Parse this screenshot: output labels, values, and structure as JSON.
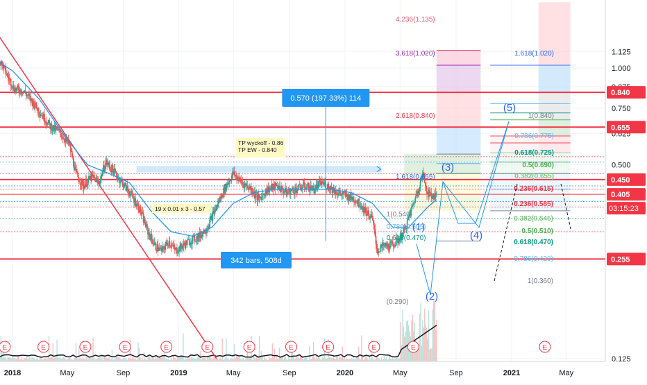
{
  "chart_data": {
    "type": "candlestick",
    "y_axis": {
      "scale": "log",
      "ticks": [
        0.125,
        0.25,
        0.375,
        0.5,
        0.625,
        0.75,
        0.875,
        1.0,
        1.125
      ],
      "tick_labels": [
        "0.125",
        "0.250",
        "0.375",
        "0.500",
        "0.625",
        "0.750",
        "0.875",
        "1.000",
        "1.125"
      ]
    },
    "x_axis": {
      "ticks": [
        {
          "date": "2018-01-01",
          "label": "2018",
          "bold": true
        },
        {
          "date": "2018-05-01",
          "label": "May",
          "bold": false
        },
        {
          "date": "2018-09-01",
          "label": "Sep",
          "bold": false
        },
        {
          "date": "2019-01-01",
          "label": "2019",
          "bold": true
        },
        {
          "date": "2019-05-01",
          "label": "May",
          "bold": false
        },
        {
          "date": "2019-09-01",
          "label": "Sep",
          "bold": false
        },
        {
          "date": "2020-01-01",
          "label": "2020",
          "bold": true
        },
        {
          "date": "2020-05-01",
          "label": "May",
          "bold": false
        },
        {
          "date": "2020-09-01",
          "label": "Sep",
          "bold": false
        },
        {
          "date": "2021-01-01",
          "label": "2021",
          "bold": true
        },
        {
          "date": "2021-05-01",
          "label": "May",
          "bold": false
        }
      ]
    },
    "price_path": [
      [
        "2017-11-20",
        1.1
      ],
      [
        "2017-12-05",
        1.05
      ],
      [
        "2017-12-20",
        0.95
      ],
      [
        "2018-01-05",
        0.86
      ],
      [
        "2018-01-25",
        0.85
      ],
      [
        "2018-02-15",
        0.78
      ],
      [
        "2018-03-05",
        0.72
      ],
      [
        "2018-03-25",
        0.66
      ],
      [
        "2018-04-15",
        0.63
      ],
      [
        "2018-05-05",
        0.58
      ],
      [
        "2018-05-20",
        0.47
      ],
      [
        "2018-06-05",
        0.43
      ],
      [
        "2018-06-25",
        0.46
      ],
      [
        "2018-07-10",
        0.44
      ],
      [
        "2018-07-25",
        0.51
      ],
      [
        "2018-08-10",
        0.48
      ],
      [
        "2018-08-25",
        0.45
      ],
      [
        "2018-09-15",
        0.41
      ],
      [
        "2018-10-05",
        0.37
      ],
      [
        "2018-10-25",
        0.31
      ],
      [
        "2018-11-10",
        0.28
      ],
      [
        "2018-11-25",
        0.27
      ],
      [
        "2018-12-10",
        0.29
      ],
      [
        "2018-12-25",
        0.27
      ],
      [
        "2019-01-10",
        0.28
      ],
      [
        "2019-01-25",
        0.29
      ],
      [
        "2019-02-15",
        0.3
      ],
      [
        "2019-03-05",
        0.32
      ],
      [
        "2019-03-25",
        0.37
      ],
      [
        "2019-04-15",
        0.43
      ],
      [
        "2019-05-01",
        0.47
      ],
      [
        "2019-05-20",
        0.44
      ],
      [
        "2019-06-10",
        0.42
      ],
      [
        "2019-06-25",
        0.39
      ],
      [
        "2019-07-15",
        0.42
      ],
      [
        "2019-08-05",
        0.43
      ],
      [
        "2019-08-25",
        0.41
      ],
      [
        "2019-09-15",
        0.42
      ],
      [
        "2019-10-05",
        0.43
      ],
      [
        "2019-10-25",
        0.42
      ],
      [
        "2019-11-10",
        0.44
      ],
      [
        "2019-11-25",
        0.43
      ],
      [
        "2019-12-15",
        0.41
      ],
      [
        "2020-01-05",
        0.4
      ],
      [
        "2020-01-25",
        0.39
      ],
      [
        "2020-02-15",
        0.36
      ],
      [
        "2020-03-01",
        0.34
      ],
      [
        "2020-03-12",
        0.27
      ],
      [
        "2020-03-25",
        0.28
      ],
      [
        "2020-04-10",
        0.28
      ],
      [
        "2020-04-25",
        0.29
      ],
      [
        "2020-05-10",
        0.31
      ],
      [
        "2020-05-25",
        0.36
      ],
      [
        "2020-06-10",
        0.42
      ],
      [
        "2020-06-20",
        0.47
      ],
      [
        "2020-06-30",
        0.41
      ],
      [
        "2020-07-10",
        0.4
      ],
      [
        "2020-07-20",
        0.405
      ]
    ],
    "moving_average": [
      [
        "2017-11-20",
        1.07
      ],
      [
        "2018-01-01",
        0.98
      ],
      [
        "2018-03-01",
        0.8
      ],
      [
        "2018-05-01",
        0.6
      ],
      [
        "2018-06-15",
        0.5
      ],
      [
        "2018-08-01",
        0.47
      ],
      [
        "2018-09-15",
        0.44
      ],
      [
        "2018-11-01",
        0.36
      ],
      [
        "2018-12-15",
        0.31
      ],
      [
        "2019-02-01",
        0.3
      ],
      [
        "2019-03-15",
        0.32
      ],
      [
        "2019-05-01",
        0.38
      ],
      [
        "2019-06-15",
        0.41
      ],
      [
        "2019-08-01",
        0.42
      ],
      [
        "2019-10-01",
        0.42
      ],
      [
        "2019-12-01",
        0.42
      ],
      [
        "2020-01-15",
        0.41
      ],
      [
        "2020-03-01",
        0.38
      ],
      [
        "2020-04-15",
        0.32
      ],
      [
        "2020-05-20",
        0.32
      ],
      [
        "2020-07-01",
        0.37
      ],
      [
        "2020-07-20",
        0.39
      ]
    ],
    "trendline": {
      "from": [
        "2017-11-25",
        1.3
      ],
      "to": [
        "2019-03-25",
        0.125
      ]
    },
    "horizontal_levels": [
      {
        "value": 0.84,
        "label": "0.840",
        "strong": true
      },
      {
        "value": 0.655,
        "label": "0.655",
        "strong": true
      },
      {
        "value": 0.45,
        "label": "0.450",
        "strong": true
      },
      {
        "value": 0.405,
        "label": "0.405",
        "strong": false
      },
      {
        "value": 0.255,
        "label": "0.255",
        "strong": true
      }
    ],
    "countdown_label": "03:15:23",
    "annotations": {
      "measure_box": "0.570 (197.33%) 114",
      "range_box": "342 bars, 508d",
      "note_tp": [
        "TP wyckoff - 0.86",
        "TP EW - 0.840"
      ],
      "note_calc": "19 x 0.01 x 3 - 0.57"
    },
    "fib_left": [
      {
        "label": "4.236(1.135)",
        "value": 1.135,
        "color": "#e2566f"
      },
      {
        "label": "3.618(1.020)",
        "value": 1.02,
        "color": "#9c27b0"
      },
      {
        "label": "2.618(0.840)",
        "value": 0.84,
        "color": "#f23645"
      },
      {
        "label": "1.618(0.655)",
        "value": 0.655,
        "color": "#2962ff"
      },
      {
        "label": "1(0.540)",
        "value": 0.54,
        "color": "#787b86"
      },
      {
        "label": "0.786(0.505)",
        "value": 0.505,
        "color": "#64b5f6"
      },
      {
        "label": "0.618(0.470)",
        "value": 0.47,
        "color": "#089981"
      },
      {
        "label": "(0.290)",
        "value": 0.29,
        "color": "#787b86"
      }
    ],
    "fib_right": [
      {
        "label": "1.618(1.020)",
        "value": 1.02,
        "color": "#2962ff"
      },
      {
        "label": "1(0.840)",
        "value": 0.84,
        "color": "#787b86"
      },
      {
        "label": "0.786(0.775)",
        "value": 0.775,
        "color": "#64b5f6"
      },
      {
        "label": "0.618(0.725)",
        "value": 0.725,
        "color": "#089981"
      },
      {
        "label": "0.5(0.690)",
        "value": 0.69,
        "color": "#4caf50"
      },
      {
        "label": "0.382(0.655)",
        "value": 0.655,
        "color": "#81c784"
      },
      {
        "label": "0.236(0.615)",
        "value": 0.615,
        "color": "#f23645"
      },
      {
        "label": "0.236(0.585)",
        "value": 0.585,
        "color": "#f23645"
      },
      {
        "label": "0.382(0.545)",
        "value": 0.545,
        "color": "#81c784"
      },
      {
        "label": "0.5(0.510)",
        "value": 0.51,
        "color": "#4caf50"
      },
      {
        "label": "0.618(0.470)",
        "value": 0.47,
        "color": "#089981"
      },
      {
        "label": "0.786(0.420)",
        "value": 0.42,
        "color": "#64b5f6"
      },
      {
        "label": "1(0.360)",
        "value": 0.36,
        "color": "#787b86"
      }
    ],
    "wave_labels": [
      "(1)",
      "(2)",
      "(3)",
      "(4)",
      "(5)"
    ],
    "earnings_marker_label": "E"
  }
}
